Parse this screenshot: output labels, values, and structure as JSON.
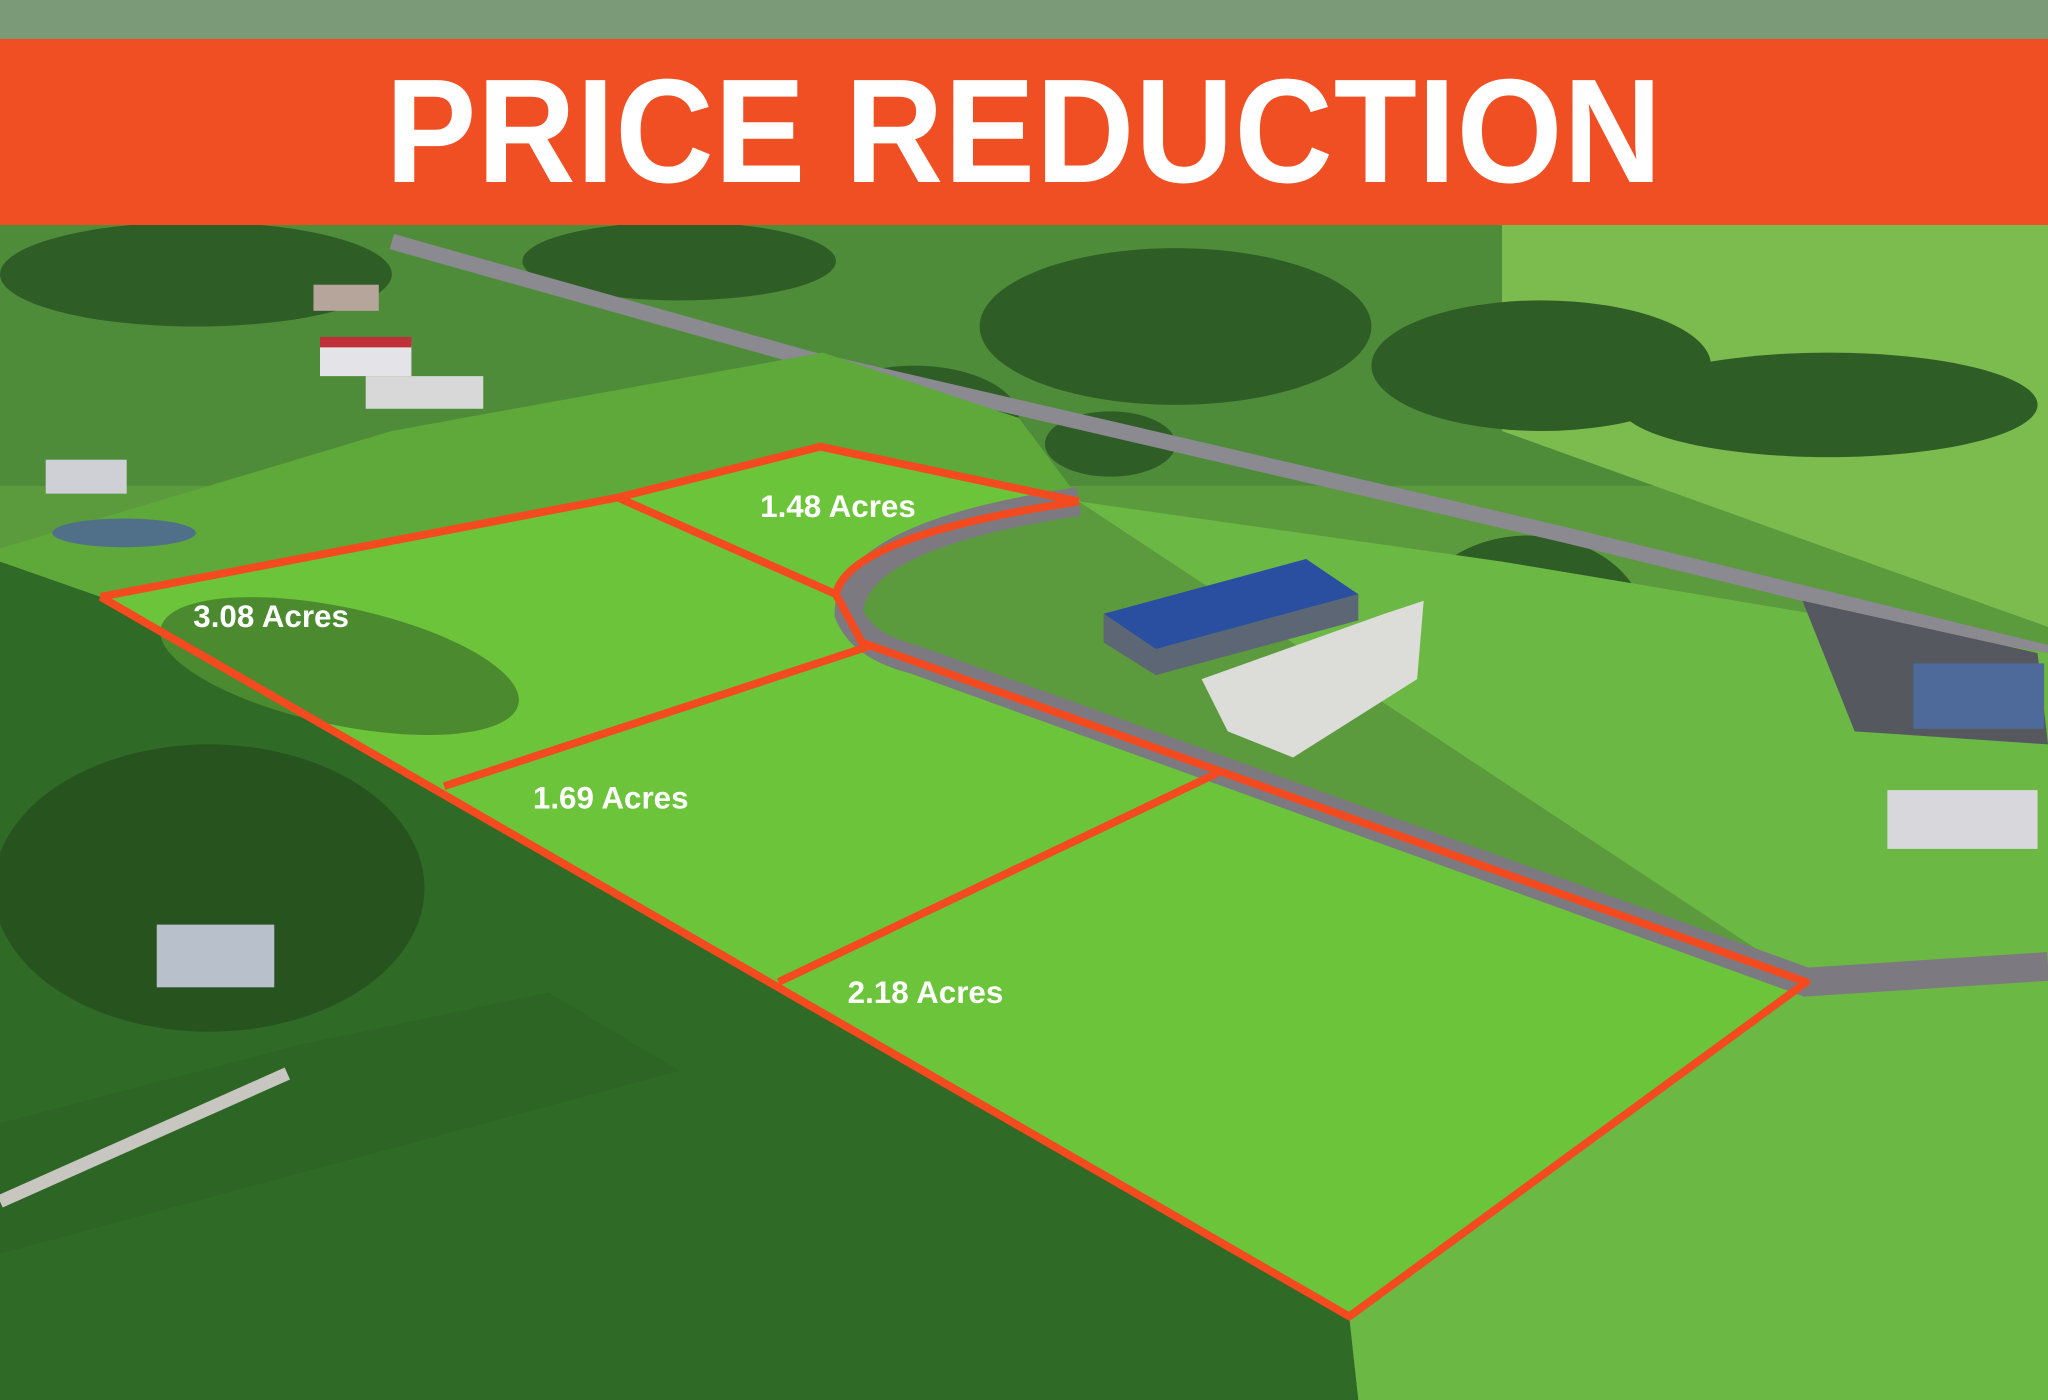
{
  "banner": {
    "text": "PRICE REDUCTION",
    "color": "#f04e23"
  },
  "lots": [
    {
      "label": "1.48 Acres"
    },
    {
      "label": "3.08 Acres"
    },
    {
      "label": "1.69 Acres"
    },
    {
      "label": "2.18 Acres"
    }
  ],
  "colors": {
    "outline": "#f44a1f",
    "grass": "#6cc43a",
    "corn": "#2f6a26",
    "road": "#7c7a80"
  }
}
